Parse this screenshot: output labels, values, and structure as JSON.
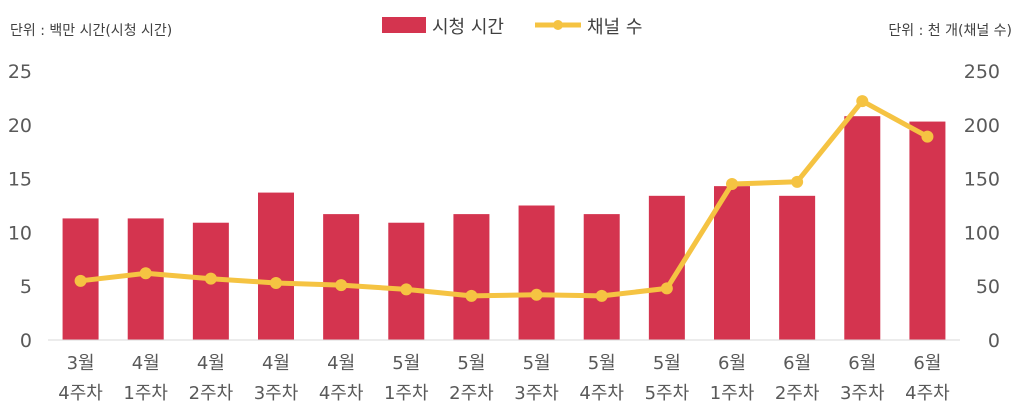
{
  "chart_data": {
    "type": "bar",
    "units": {
      "left": "단위 : 백만 시간(시청 시간)",
      "right": "단위 : 천 개(채널 수)"
    },
    "categories": [
      [
        "3월",
        "4주차"
      ],
      [
        "4월",
        "1주차"
      ],
      [
        "4월",
        "2주차"
      ],
      [
        "4월",
        "3주차"
      ],
      [
        "4월",
        "4주차"
      ],
      [
        "5월",
        "1주차"
      ],
      [
        "5월",
        "2주차"
      ],
      [
        "5월",
        "3주차"
      ],
      [
        "5월",
        "4주차"
      ],
      [
        "5월",
        "5주차"
      ],
      [
        "6월",
        "1주차"
      ],
      [
        "6월",
        "2주차"
      ],
      [
        "6월",
        "3주차"
      ],
      [
        "6월",
        "4주차"
      ]
    ],
    "series": [
      {
        "name": "시청 시간",
        "type": "bar",
        "axis": "left",
        "color": "#d4344f",
        "values": [
          11.3,
          11.3,
          10.9,
          13.7,
          11.7,
          10.9,
          11.7,
          12.5,
          11.7,
          13.4,
          14.3,
          13.4,
          20.8,
          20.3
        ]
      },
      {
        "name": "채널 수",
        "type": "line",
        "axis": "right",
        "color": "#f5c342",
        "values": [
          55,
          62,
          57,
          53,
          51,
          47,
          41,
          42,
          41,
          48,
          145,
          147,
          222,
          189
        ]
      }
    ],
    "y_left": {
      "range": [
        0,
        25
      ],
      "ticks": [
        "0",
        "5",
        "10",
        "15",
        "20",
        "25"
      ]
    },
    "y_right": {
      "range": [
        0,
        250
      ],
      "ticks": [
        "0",
        "50",
        "100",
        "150",
        "200",
        "250"
      ]
    },
    "grid": false,
    "legend": "top-center"
  }
}
